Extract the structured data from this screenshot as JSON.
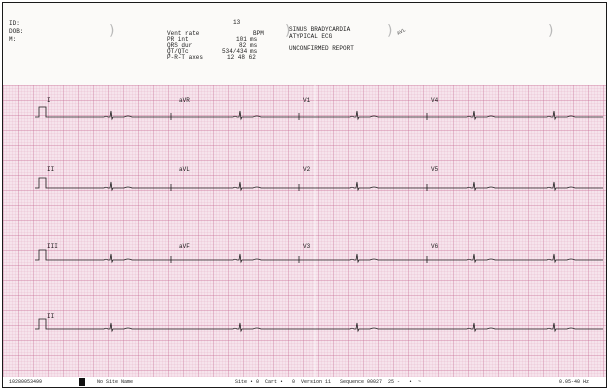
{
  "patient": {
    "id_label": "ID:",
    "dob_label": "DOB:",
    "sex_label": "M:"
  },
  "measurements": [
    {
      "label": "Vent rate",
      "value": "13",
      "unit": "BPM"
    },
    {
      "label": "PR int",
      "value": "101",
      "unit": "ms"
    },
    {
      "label": "QRS dur",
      "value": "82",
      "unit": "ms"
    },
    {
      "label": "QT/QTc",
      "value": "534/434",
      "unit": "ms"
    },
    {
      "label": "P-R-T axes",
      "value": "12 48 62",
      "unit": ""
    }
  ],
  "interpretation": [
    "SINUS BRADYCARDIA",
    "ATYPICAL ECG",
    "",
    "UNCONFIRMED REPORT"
  ],
  "stamp": "AVL",
  "leads": {
    "row1": [
      "I",
      "aVR",
      "V1",
      "V4"
    ],
    "row2": [
      "II",
      "aVL",
      "V2",
      "V5"
    ],
    "row3": [
      "III",
      "aVF",
      "V3",
      "V6"
    ],
    "row4": [
      "II"
    ]
  },
  "footer": {
    "device_id": "10280053499",
    "site": "No Site Name",
    "site_info": "Site • 0  Cart •   0  Version 11   Sequence 00027  25 -   •  ~",
    "filter": "0.05-40 Hz"
  },
  "colors": {
    "paper": "#f6e4ec",
    "grid_minor": "#e2a9c0",
    "grid_major": "#c86f96",
    "trace": "#1f1f1f"
  }
}
